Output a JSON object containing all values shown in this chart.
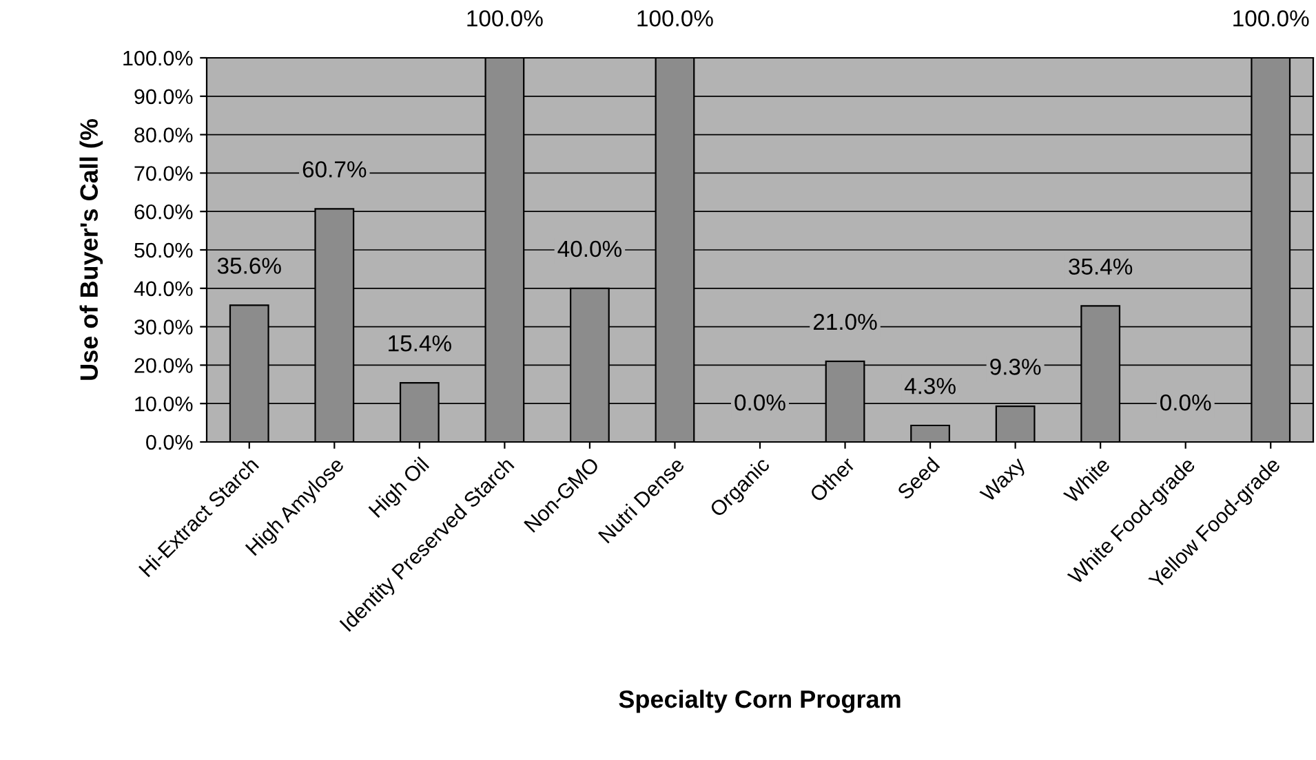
{
  "chart_data": {
    "type": "bar",
    "xlabel": "Specialty Corn Program",
    "ylabel": "Use of Buyer's Call (%",
    "categories": [
      "Hi-Extract Starch",
      "High Amylose",
      "High Oil",
      "Identity Preserved Starch",
      "Non-GMO",
      "Nutri Dense",
      "Organic",
      "Other",
      "Seed",
      "Waxy",
      "White",
      "White Food-grade",
      "Yellow Food-grade"
    ],
    "values": [
      35.6,
      60.7,
      15.4,
      100.0,
      40.0,
      100.0,
      0.0,
      21.0,
      4.3,
      9.3,
      35.4,
      0.0,
      100.0
    ],
    "value_labels": [
      "35.6%",
      "60.7%",
      "15.4%",
      "100.0%",
      "40.0%",
      "100.0%",
      "0.0%",
      "21.0%",
      "4.3%",
      "9.3%",
      "35.4%",
      "0.0%",
      "100.0%"
    ],
    "color": "#8c8c8c",
    "ylim": [
      0,
      100
    ],
    "yticks": [
      {
        "value": 0,
        "label": "0.0%"
      },
      {
        "value": 10,
        "label": "10.0%"
      },
      {
        "value": 20,
        "label": "20.0%"
      },
      {
        "value": 30,
        "label": "30.0%"
      },
      {
        "value": 40,
        "label": "40.0%"
      },
      {
        "value": 50,
        "label": "50.0%"
      },
      {
        "value": 60,
        "label": "60.0%"
      },
      {
        "value": 70,
        "label": "70.0%"
      },
      {
        "value": 80,
        "label": "80.0%"
      },
      {
        "value": 90,
        "label": "90.0%"
      },
      {
        "value": 100,
        "label": "100.0%"
      }
    ],
    "grid": "y"
  }
}
